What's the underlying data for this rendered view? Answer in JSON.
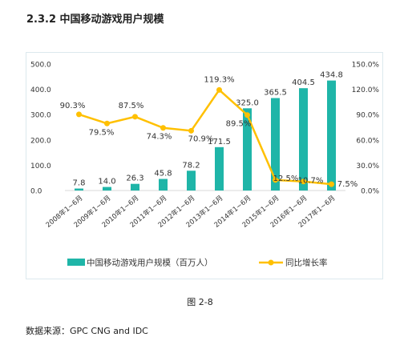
{
  "heading": "2.3.2 中国移动游戏用户规模",
  "caption": "图 2-8",
  "source": "数据来源：GPC CNG and IDC",
  "colors": {
    "bar": "#1fb5a8",
    "line": "#ffc000",
    "axis": "#d9d9d9",
    "text": "#333333"
  },
  "chart_data": {
    "type": "bar+line",
    "title": "",
    "categories": [
      "2008年1~6月",
      "2009年1~6月",
      "2010年1~6月",
      "2011年1~6月",
      "2012年1~6月",
      "2013年1~6月",
      "2014年1~6月",
      "2015年1~6月",
      "2016年1~6月",
      "2017年1~6月"
    ],
    "series": [
      {
        "name": "中国移动游戏用户规模（百万人）",
        "type": "bar",
        "axis": "left",
        "values": [
          7.8,
          14.0,
          26.3,
          45.8,
          78.2,
          171.5,
          325.0,
          365.5,
          404.5,
          434.8
        ],
        "labels": [
          "7.8",
          "14.0",
          "26.3",
          "45.8",
          "78.2",
          "171.5",
          "325.0",
          "365.5",
          "404.5",
          "434.8"
        ]
      },
      {
        "name": "同比增长率",
        "type": "line",
        "axis": "right",
        "values": [
          90.3,
          79.5,
          87.5,
          74.3,
          70.9,
          119.3,
          89.5,
          12.5,
          10.7,
          7.5
        ],
        "labels": [
          "90.3%",
          "79.5%",
          "87.5%",
          "74.3%",
          "70.9%",
          "119.3%",
          "89.5%",
          "12.5%",
          "10.7%",
          "7.5%"
        ]
      }
    ],
    "y_left": {
      "ylim": [
        0,
        500
      ],
      "ticks": [
        "0.0",
        "100.0",
        "200.0",
        "300.0",
        "400.0",
        "500.0"
      ]
    },
    "y_right": {
      "ylim": [
        0,
        150
      ],
      "ticks": [
        "0.0%",
        "30.0%",
        "60.0%",
        "90.0%",
        "120.0%",
        "150.0%"
      ]
    },
    "grid": false,
    "legend": "bottom"
  }
}
